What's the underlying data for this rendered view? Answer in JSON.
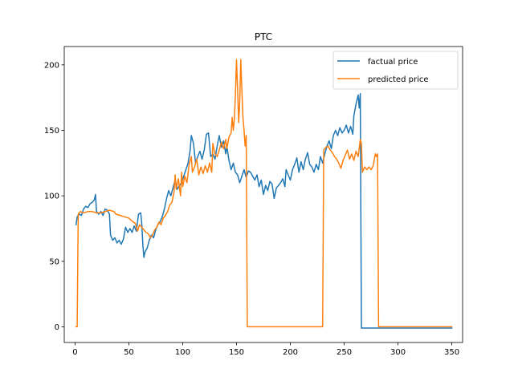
{
  "chart_data": {
    "type": "line",
    "title": "PTC",
    "xlabel": "",
    "ylabel": "",
    "xlim": [
      -10,
      360
    ],
    "ylim": [
      -12,
      214
    ],
    "x_ticks": [
      0,
      50,
      100,
      150,
      200,
      250,
      300,
      350
    ],
    "y_ticks": [
      0,
      50,
      100,
      150,
      200
    ],
    "grid": false,
    "legend_position": "upper right",
    "series": [
      {
        "name": "factual price",
        "color": "#1f77b4",
        "points": [
          [
            1,
            78
          ],
          [
            2,
            84
          ],
          [
            4,
            86
          ],
          [
            6,
            85
          ],
          [
            8,
            90
          ],
          [
            10,
            92
          ],
          [
            12,
            91
          ],
          [
            14,
            94
          ],
          [
            16,
            95
          ],
          [
            18,
            97
          ],
          [
            19,
            101
          ],
          [
            20,
            88
          ],
          [
            22,
            86
          ],
          [
            24,
            88
          ],
          [
            26,
            85
          ],
          [
            28,
            90
          ],
          [
            30,
            89
          ],
          [
            32,
            86
          ],
          [
            33,
            70
          ],
          [
            35,
            66
          ],
          [
            37,
            68
          ],
          [
            39,
            64
          ],
          [
            41,
            66
          ],
          [
            43,
            63
          ],
          [
            45,
            67
          ],
          [
            47,
            76
          ],
          [
            49,
            72
          ],
          [
            51,
            75
          ],
          [
            53,
            72
          ],
          [
            55,
            77
          ],
          [
            57,
            73
          ],
          [
            59,
            86
          ],
          [
            61,
            87
          ],
          [
            62,
            79
          ],
          [
            63,
            62
          ],
          [
            64,
            53
          ],
          [
            65,
            57
          ],
          [
            67,
            60
          ],
          [
            69,
            66
          ],
          [
            71,
            70
          ],
          [
            73,
            68
          ],
          [
            75,
            74
          ],
          [
            77,
            78
          ],
          [
            79,
            80
          ],
          [
            81,
            84
          ],
          [
            83,
            90
          ],
          [
            85,
            98
          ],
          [
            87,
            104
          ],
          [
            89,
            100
          ],
          [
            91,
            106
          ],
          [
            93,
            112
          ],
          [
            95,
            105
          ],
          [
            97,
            108
          ],
          [
            99,
            110
          ],
          [
            101,
            115
          ],
          [
            103,
            120
          ],
          [
            105,
            125
          ],
          [
            107,
            135
          ],
          [
            108,
            146
          ],
          [
            110,
            140
          ],
          [
            112,
            125
          ],
          [
            114,
            130
          ],
          [
            116,
            134
          ],
          [
            118,
            128
          ],
          [
            120,
            135
          ],
          [
            122,
            147
          ],
          [
            124,
            148
          ],
          [
            126,
            130
          ],
          [
            128,
            132
          ],
          [
            130,
            128
          ],
          [
            132,
            138
          ],
          [
            134,
            146
          ],
          [
            136,
            137
          ],
          [
            138,
            142
          ],
          [
            140,
            132
          ],
          [
            141,
            138
          ],
          [
            143,
            127
          ],
          [
            145,
            120
          ],
          [
            147,
            125
          ],
          [
            149,
            118
          ],
          [
            151,
            116
          ],
          [
            153,
            110
          ],
          [
            155,
            115
          ],
          [
            157,
            120
          ],
          [
            159,
            114
          ],
          [
            161,
            119
          ],
          [
            163,
            118
          ],
          [
            165,
            115
          ],
          [
            167,
            112
          ],
          [
            169,
            116
          ],
          [
            171,
            107
          ],
          [
            173,
            112
          ],
          [
            175,
            101
          ],
          [
            177,
            108
          ],
          [
            179,
            104
          ],
          [
            181,
            111
          ],
          [
            183,
            109
          ],
          [
            185,
            98
          ],
          [
            187,
            106
          ],
          [
            189,
            108
          ],
          [
            191,
            110
          ],
          [
            193,
            113
          ],
          [
            195,
            107
          ],
          [
            196,
            120
          ],
          [
            198,
            116
          ],
          [
            200,
            112
          ],
          [
            202,
            120
          ],
          [
            204,
            124
          ],
          [
            206,
            129
          ],
          [
            208,
            118
          ],
          [
            210,
            126
          ],
          [
            212,
            120
          ],
          [
            214,
            128
          ],
          [
            216,
            133
          ],
          [
            218,
            124
          ],
          [
            220,
            122
          ],
          [
            222,
            118
          ],
          [
            224,
            124
          ],
          [
            226,
            120
          ],
          [
            228,
            130
          ],
          [
            230,
            125
          ],
          [
            232,
            132
          ],
          [
            234,
            138
          ],
          [
            236,
            142
          ],
          [
            238,
            136
          ],
          [
            240,
            146
          ],
          [
            242,
            150
          ],
          [
            244,
            146
          ],
          [
            246,
            152
          ],
          [
            248,
            148
          ],
          [
            250,
            150
          ],
          [
            252,
            154
          ],
          [
            254,
            148
          ],
          [
            256,
            153
          ],
          [
            258,
            147
          ],
          [
            259,
            161
          ],
          [
            261,
            170
          ],
          [
            263,
            177
          ],
          [
            264,
            167
          ],
          [
            265,
            178
          ],
          [
            266,
            -1
          ],
          [
            350,
            -1
          ]
        ]
      },
      {
        "name": "predicted price",
        "color": "#ff7f0e",
        "points": [
          [
            1,
            0
          ],
          [
            2,
            0
          ],
          [
            3,
            86
          ],
          [
            5,
            88
          ],
          [
            8,
            87
          ],
          [
            12,
            88
          ],
          [
            16,
            88
          ],
          [
            20,
            87
          ],
          [
            24,
            87
          ],
          [
            28,
            88
          ],
          [
            32,
            89
          ],
          [
            36,
            88
          ],
          [
            38,
            86
          ],
          [
            42,
            85
          ],
          [
            46,
            84
          ],
          [
            50,
            83
          ],
          [
            54,
            80
          ],
          [
            56,
            79
          ],
          [
            58,
            73
          ],
          [
            60,
            78
          ],
          [
            62,
            76
          ],
          [
            64,
            74
          ],
          [
            66,
            72
          ],
          [
            68,
            71
          ],
          [
            70,
            68
          ],
          [
            72,
            70
          ],
          [
            74,
            74
          ],
          [
            76,
            76
          ],
          [
            78,
            80
          ],
          [
            80,
            78
          ],
          [
            82,
            83
          ],
          [
            84,
            85
          ],
          [
            86,
            88
          ],
          [
            88,
            93
          ],
          [
            90,
            95
          ],
          [
            92,
            103
          ],
          [
            93,
            116
          ],
          [
            94,
            105
          ],
          [
            96,
            113
          ],
          [
            98,
            100
          ],
          [
            99,
            118
          ],
          [
            100,
            107
          ],
          [
            102,
            115
          ],
          [
            104,
            110
          ],
          [
            106,
            124
          ],
          [
            108,
            130
          ],
          [
            109,
            118
          ],
          [
            111,
            122
          ],
          [
            113,
            128
          ],
          [
            115,
            116
          ],
          [
            117,
            122
          ],
          [
            119,
            117
          ],
          [
            121,
            123
          ],
          [
            123,
            118
          ],
          [
            125,
            125
          ],
          [
            127,
            118
          ],
          [
            128,
            140
          ],
          [
            130,
            132
          ],
          [
            132,
            130
          ],
          [
            134,
            135
          ],
          [
            136,
            141
          ],
          [
            138,
            136
          ],
          [
            140,
            143
          ],
          [
            141,
            136
          ],
          [
            143,
            145
          ],
          [
            145,
            148
          ],
          [
            146,
            160
          ],
          [
            147,
            150
          ],
          [
            148,
            158
          ],
          [
            149,
            177
          ],
          [
            150,
            204
          ],
          [
            151,
            182
          ],
          [
            152,
            156
          ],
          [
            153,
            172
          ],
          [
            154,
            204
          ],
          [
            155,
            180
          ],
          [
            156,
            160
          ],
          [
            157,
            150
          ],
          [
            158,
            138
          ],
          [
            159,
            146
          ],
          [
            160,
            0
          ],
          [
            230,
            0
          ],
          [
            231,
            135
          ],
          [
            233,
            137
          ],
          [
            235,
            138
          ],
          [
            237,
            135
          ],
          [
            239,
            133
          ],
          [
            241,
            130
          ],
          [
            243,
            128
          ],
          [
            245,
            125
          ],
          [
            247,
            121
          ],
          [
            249,
            127
          ],
          [
            251,
            131
          ],
          [
            253,
            135
          ],
          [
            255,
            128
          ],
          [
            257,
            132
          ],
          [
            259,
            127
          ],
          [
            261,
            134
          ],
          [
            263,
            130
          ],
          [
            265,
            143
          ],
          [
            266,
            140
          ],
          [
            267,
            118
          ],
          [
            269,
            122
          ],
          [
            271,
            120
          ],
          [
            273,
            122
          ],
          [
            275,
            120
          ],
          [
            277,
            123
          ],
          [
            278,
            128
          ],
          [
            279,
            132
          ],
          [
            280,
            130
          ],
          [
            281,
            132
          ],
          [
            282,
            0
          ],
          [
            350,
            0
          ]
        ]
      }
    ]
  }
}
